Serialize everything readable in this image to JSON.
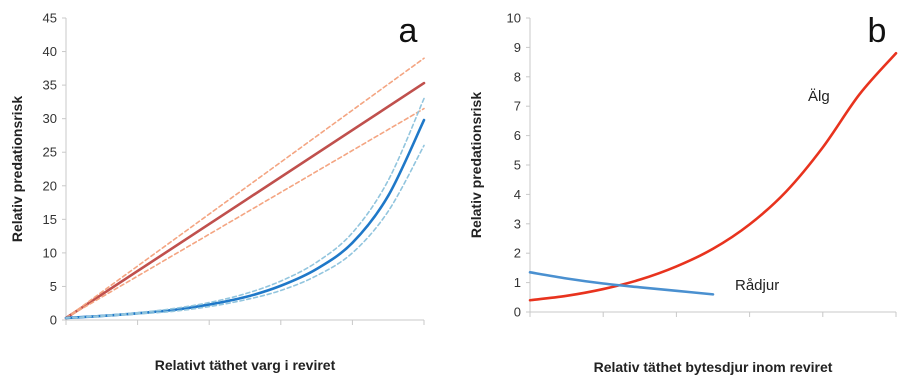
{
  "chart_data": [
    {
      "type": "line",
      "panel_label": "a",
      "xlabel": "Relativt täthet varg i reviret",
      "ylabel": "Relativ predationsrisk",
      "ylim": [
        0,
        45
      ],
      "yticks": [
        0,
        5,
        10,
        15,
        20,
        25,
        30,
        35,
        40,
        45
      ],
      "xlim": [
        0,
        1
      ],
      "grid": false,
      "series": [
        {
          "style": "solid",
          "color": "#c0504d",
          "x": [
            0,
            1
          ],
          "y": [
            0.3,
            35.3
          ]
        },
        {
          "style": "dashed",
          "color": "#f4a582",
          "x": [
            0,
            1
          ],
          "y": [
            0.3,
            39
          ]
        },
        {
          "style": "dashed",
          "color": "#f4a582",
          "x": [
            0,
            1
          ],
          "y": [
            0.3,
            31.5
          ]
        },
        {
          "style": "solid",
          "color": "#1f78c8",
          "x": [
            0,
            0.1,
            0.2,
            0.3,
            0.4,
            0.5,
            0.6,
            0.7,
            0.8,
            0.9,
            1.0
          ],
          "y": [
            0.3,
            0.6,
            1.0,
            1.5,
            2.3,
            3.4,
            5.1,
            7.6,
            11.5,
            18.5,
            29.8
          ]
        },
        {
          "style": "dashed",
          "color": "#92c5de",
          "x": [
            0,
            0.1,
            0.2,
            0.3,
            0.4,
            0.5,
            0.6,
            0.7,
            0.8,
            0.9,
            1.0
          ],
          "y": [
            0.3,
            0.65,
            1.1,
            1.7,
            2.6,
            3.9,
            5.8,
            8.6,
            13.0,
            20.8,
            33.0
          ]
        },
        {
          "style": "dashed",
          "color": "#92c5de",
          "x": [
            0,
            0.1,
            0.2,
            0.3,
            0.4,
            0.5,
            0.6,
            0.7,
            0.8,
            0.9,
            1.0
          ],
          "y": [
            0.3,
            0.55,
            0.9,
            1.3,
            2.0,
            3.0,
            4.4,
            6.6,
            10.0,
            16.2,
            26.0
          ]
        }
      ]
    },
    {
      "type": "line",
      "panel_label": "b",
      "xlabel": "Relativ täthet bytesdjur inom reviret",
      "ylabel": "Relativ predationsrisk",
      "ylim": [
        0,
        10
      ],
      "yticks": [
        0,
        1,
        2,
        3,
        4,
        5,
        6,
        7,
        8,
        9,
        10
      ],
      "xlim": [
        0,
        1
      ],
      "grid": false,
      "series": [
        {
          "name": "Älg",
          "style": "solid",
          "color": "#e8331e",
          "x": [
            0,
            0.1,
            0.2,
            0.3,
            0.4,
            0.5,
            0.6,
            0.7,
            0.8,
            0.9,
            1.0
          ],
          "y": [
            0.4,
            0.55,
            0.78,
            1.1,
            1.55,
            2.15,
            2.98,
            4.1,
            5.6,
            7.4,
            8.8
          ]
        },
        {
          "name": "Rådjur",
          "style": "solid",
          "color": "#4a90d0",
          "x": [
            0,
            0.1,
            0.2,
            0.3,
            0.4,
            0.5
          ],
          "y": [
            1.35,
            1.14,
            0.97,
            0.84,
            0.72,
            0.6
          ]
        }
      ]
    }
  ]
}
